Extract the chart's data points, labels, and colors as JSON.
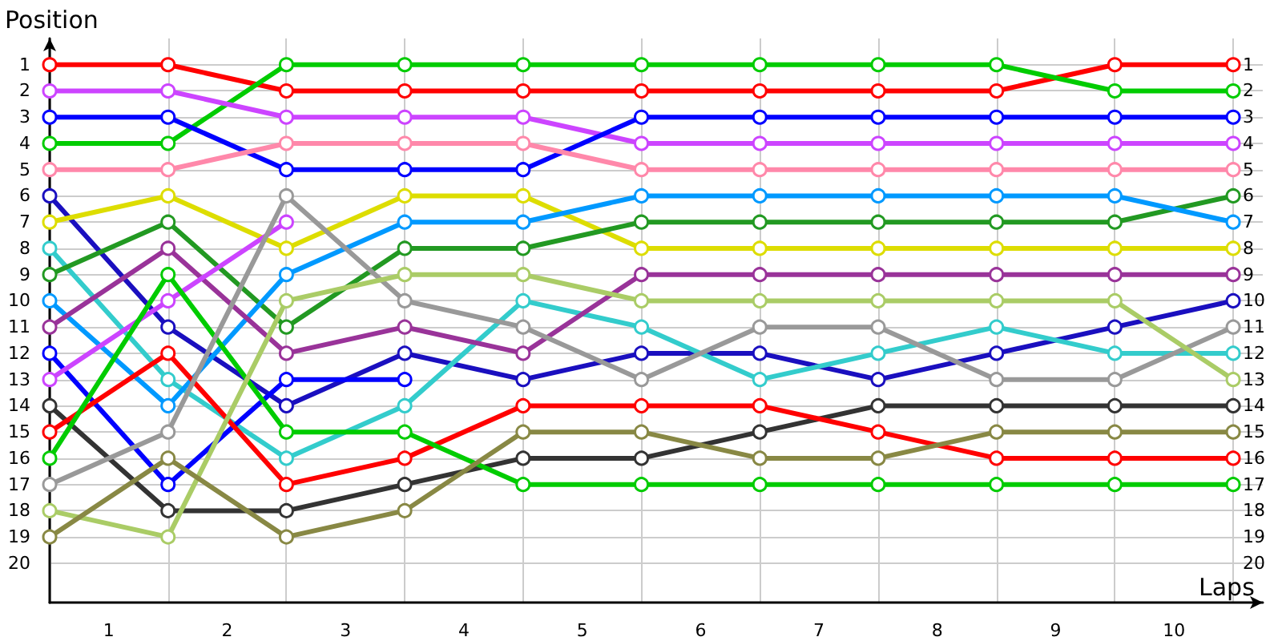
{
  "chart_data": {
    "type": "line",
    "xlabel": "Laps",
    "ylabel": "Position",
    "x": [
      0,
      1,
      2,
      3,
      4,
      5,
      6,
      7,
      8,
      9,
      10
    ],
    "xlim": [
      0,
      10.25
    ],
    "xticks": [
      {
        "value": 0,
        "label": null
      },
      {
        "value": 0.5,
        "label": "1"
      },
      {
        "value": 1,
        "label": null
      },
      {
        "value": 1.5,
        "label": "2"
      },
      {
        "value": 2,
        "label": null
      },
      {
        "value": 2.5,
        "label": "3"
      },
      {
        "value": 3,
        "label": null
      },
      {
        "value": 3.5,
        "label": "4"
      },
      {
        "value": 4,
        "label": null
      },
      {
        "value": 4.5,
        "label": "5"
      },
      {
        "value": 5,
        "label": null
      },
      {
        "value": 5.5,
        "label": "6"
      },
      {
        "value": 6,
        "label": null
      },
      {
        "value": 6.5,
        "label": "7"
      },
      {
        "value": 7,
        "label": null
      },
      {
        "value": 7.5,
        "label": "8"
      },
      {
        "value": 8,
        "label": null
      },
      {
        "value": 8.5,
        "label": "9"
      },
      {
        "value": 9,
        "label": null
      },
      {
        "value": 9.5,
        "label": "10"
      },
      {
        "value": 10,
        "label": null
      }
    ],
    "ylim": [
      21.5,
      0
    ],
    "yticks": [
      1,
      2,
      3,
      4,
      5,
      6,
      7,
      8,
      9,
      10,
      11,
      12,
      13,
      14,
      15,
      16,
      17,
      18,
      19,
      20
    ],
    "y2lim": [
      21.5,
      0
    ],
    "y2ticks": [
      1,
      2,
      3,
      4,
      5,
      6,
      7,
      8,
      9,
      10,
      11,
      12,
      13,
      14,
      15,
      16,
      17,
      18,
      19,
      20
    ],
    "grid": true,
    "marker": "circle",
    "line_style": "solid",
    "series": [
      {
        "color": "#ff0000",
        "values": [
          1,
          1,
          2,
          2,
          2,
          2,
          2,
          2,
          2,
          1,
          1
        ]
      },
      {
        "color": "#00cc00",
        "values": [
          4,
          4,
          1,
          1,
          1,
          1,
          1,
          1,
          1,
          2,
          2
        ]
      },
      {
        "color": "#cc44ff",
        "values": [
          2,
          2,
          3,
          3,
          3,
          4,
          4,
          4,
          4,
          4,
          4
        ]
      },
      {
        "color": "#0000ff",
        "values": [
          3,
          3,
          5,
          5,
          5,
          3,
          3,
          3,
          3,
          3,
          3
        ]
      },
      {
        "color": "#ff88aa",
        "values": [
          5,
          5,
          4,
          4,
          4,
          5,
          5,
          5,
          5,
          5,
          5
        ]
      },
      {
        "color": "#1a0fbf",
        "values": [
          6,
          11,
          14,
          12,
          13,
          12,
          12,
          13,
          12,
          11,
          10
        ]
      },
      {
        "color": "#dddd00",
        "values": [
          7,
          6,
          8,
          6,
          6,
          8,
          8,
          8,
          8,
          8,
          8
        ]
      },
      {
        "color": "#33cccc",
        "values": [
          8,
          13,
          16,
          14,
          10,
          11,
          13,
          12,
          11,
          12,
          12
        ]
      },
      {
        "color": "#229922",
        "values": [
          9,
          7,
          11,
          8,
          8,
          7,
          7,
          7,
          7,
          7,
          6
        ]
      },
      {
        "color": "#0099ff",
        "values": [
          10,
          14,
          9,
          7,
          7,
          6,
          6,
          6,
          6,
          6,
          7
        ]
      },
      {
        "color": "#993399",
        "values": [
          11,
          8,
          12,
          11,
          12,
          9,
          9,
          9,
          9,
          9,
          9
        ]
      },
      {
        "color": "#0000ff",
        "values": [
          12,
          17,
          13,
          13,
          null,
          null,
          null,
          null,
          null,
          null,
          null
        ]
      },
      {
        "color": "#cc44ff",
        "values": [
          13,
          10,
          7,
          null,
          null,
          null,
          null,
          null,
          null,
          null,
          null
        ]
      },
      {
        "color": "#333333",
        "values": [
          14,
          18,
          18,
          17,
          16,
          16,
          15,
          14,
          14,
          14,
          14
        ]
      },
      {
        "color": "#ff0000",
        "values": [
          15,
          12,
          17,
          16,
          14,
          14,
          14,
          15,
          16,
          16,
          16
        ]
      },
      {
        "color": "#00cc00",
        "values": [
          16,
          9,
          15,
          15,
          17,
          17,
          17,
          17,
          17,
          17,
          17
        ]
      },
      {
        "color": "#999999",
        "values": [
          17,
          15,
          6,
          10,
          11,
          13,
          11,
          11,
          13,
          13,
          11
        ]
      },
      {
        "color": "#aacc66",
        "values": [
          18,
          19,
          10,
          9,
          9,
          10,
          10,
          10,
          10,
          10,
          13
        ]
      },
      {
        "color": "#888844",
        "values": [
          19,
          16,
          19,
          18,
          15,
          15,
          16,
          16,
          15,
          15,
          15
        ]
      }
    ]
  }
}
